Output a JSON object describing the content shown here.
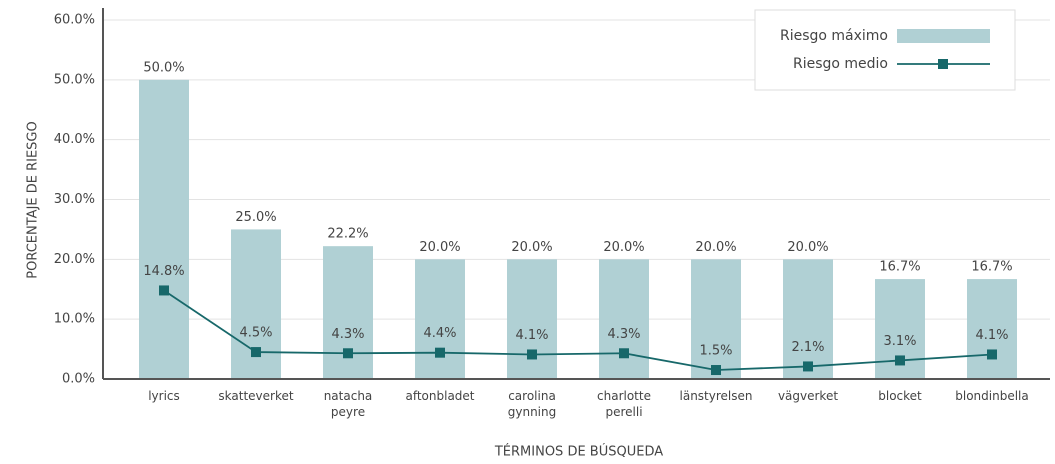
{
  "chart_data": {
    "type": "bar",
    "x_label": "TÉRMINOS DE BÚSQUEDA",
    "y_label": "PORCENTAJE DE RIESGO",
    "categories": [
      "lyrics",
      "skatteverket",
      "natacha peyre",
      "aftonbladet",
      "carolina gynning",
      "charlotte perelli",
      "länstyrelsen",
      "vägverket",
      "blocket",
      "blondinbella"
    ],
    "series": [
      {
        "name": "Riesgo máximo",
        "type": "bar",
        "color": "#b0d0d4",
        "values": [
          50,
          25,
          22.2,
          20,
          20,
          20,
          20,
          20,
          16.7,
          16.7
        ],
        "value_labels": [
          "50.0%",
          "25.0%",
          "22.2%",
          "20.0%",
          "20.0%",
          "20.0%",
          "20.0%",
          "20.0%",
          "16.7%",
          "16.7%"
        ]
      },
      {
        "name": "Riesgo medio",
        "type": "line",
        "color": "#17686a",
        "values": [
          14.8,
          4.5,
          4.3,
          4.4,
          4.1,
          4.3,
          1.5,
          2.1,
          3.1,
          4.1
        ],
        "value_labels": [
          "14.8%",
          "4.5%",
          "4.3%",
          "4.4%",
          "4.1%",
          "4.3%",
          "1.5%",
          "2.1%",
          "3.1%",
          "4.1%"
        ]
      }
    ],
    "ylim": [
      0,
      60
    ],
    "yticks": [
      {
        "value": 0,
        "label": "0.0%"
      },
      {
        "value": 10,
        "label": "10.0%"
      },
      {
        "value": 20,
        "label": "20.0%"
      },
      {
        "value": 30,
        "label": "30.0%"
      },
      {
        "value": 40,
        "label": "40.0%"
      },
      {
        "value": 50,
        "label": "50.0%"
      },
      {
        "value": 60,
        "label": "60.0%"
      }
    ],
    "grid": true,
    "legend": "upper right"
  }
}
